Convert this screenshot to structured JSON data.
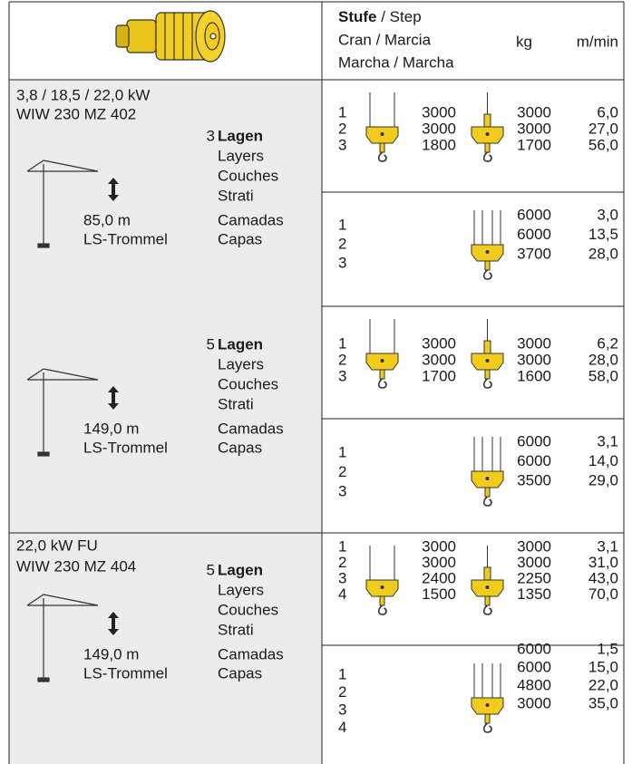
{
  "header": {
    "stufe": "Stufe",
    "step": "/ Step",
    "cran": "Cran / Marcia",
    "kg": "kg",
    "speed": "m/min",
    "marcha": "Marcha / Marcha"
  },
  "sections": [
    {
      "power": "3,8 / 18,5 / 22,0 kW",
      "model": "WIW 230 MZ 402",
      "groups": [
        {
          "layers_count": "3",
          "layers": [
            "Lagen",
            "Layers",
            "Couches",
            "Strati",
            "Camadas",
            "Capas"
          ],
          "length": "85,0 m",
          "drum": "LS-Trommel",
          "reevings": [
            {
              "steps": [
                "1",
                "2",
                "3"
              ],
              "kg_2": [
                "3000",
                "3000",
                "1800"
              ],
              "kg": [
                "3000",
                "3000",
                "1700"
              ],
              "speed": [
                "6,0",
                "27,0",
                "56,0"
              ]
            },
            {
              "steps": [
                "1",
                "2",
                "3"
              ],
              "kg": [
                "6000",
                "6000",
                "3700"
              ],
              "speed": [
                "3,0",
                "13,5",
                "28,0"
              ]
            }
          ]
        },
        {
          "layers_count": "5",
          "layers": [
            "Lagen",
            "Layers",
            "Couches",
            "Strati",
            "Camadas",
            "Capas"
          ],
          "length": "149,0 m",
          "drum": "LS-Trommel",
          "reevings": [
            {
              "steps": [
                "1",
                "2",
                "3"
              ],
              "kg_2": [
                "3000",
                "3000",
                "1700"
              ],
              "kg": [
                "3000",
                "3000",
                "1600"
              ],
              "speed": [
                "6,2",
                "28,0",
                "58,0"
              ]
            },
            {
              "steps": [
                "1",
                "2",
                "3"
              ],
              "kg": [
                "6000",
                "6000",
                "3500"
              ],
              "speed": [
                "3,1",
                "14,0",
                "29,0"
              ]
            }
          ]
        }
      ]
    },
    {
      "power": "22,0 kW FU",
      "model": "WIW 230 MZ 404",
      "groups": [
        {
          "layers_count": "5",
          "layers": [
            "Lagen",
            "Layers",
            "Couches",
            "Strati",
            "Camadas",
            "Capas"
          ],
          "length": "149,0 m",
          "drum": "LS-Trommel",
          "reevings": [
            {
              "steps": [
                "1",
                "2",
                "3",
                "4"
              ],
              "kg_2": [
                "3000",
                "3000",
                "2400",
                "1500"
              ],
              "kg": [
                "3000",
                "3000",
                "2250",
                "1350"
              ],
              "speed": [
                "3,1",
                "31,0",
                "43,0",
                "70,0"
              ]
            },
            {
              "steps": [
                "1",
                "2",
                "3",
                "4"
              ],
              "kg": [
                "6000",
                "6000",
                "4800",
                "3000"
              ],
              "speed": [
                "1,5",
                "15,0",
                "22,0",
                "35,0"
              ]
            }
          ]
        }
      ]
    }
  ]
}
